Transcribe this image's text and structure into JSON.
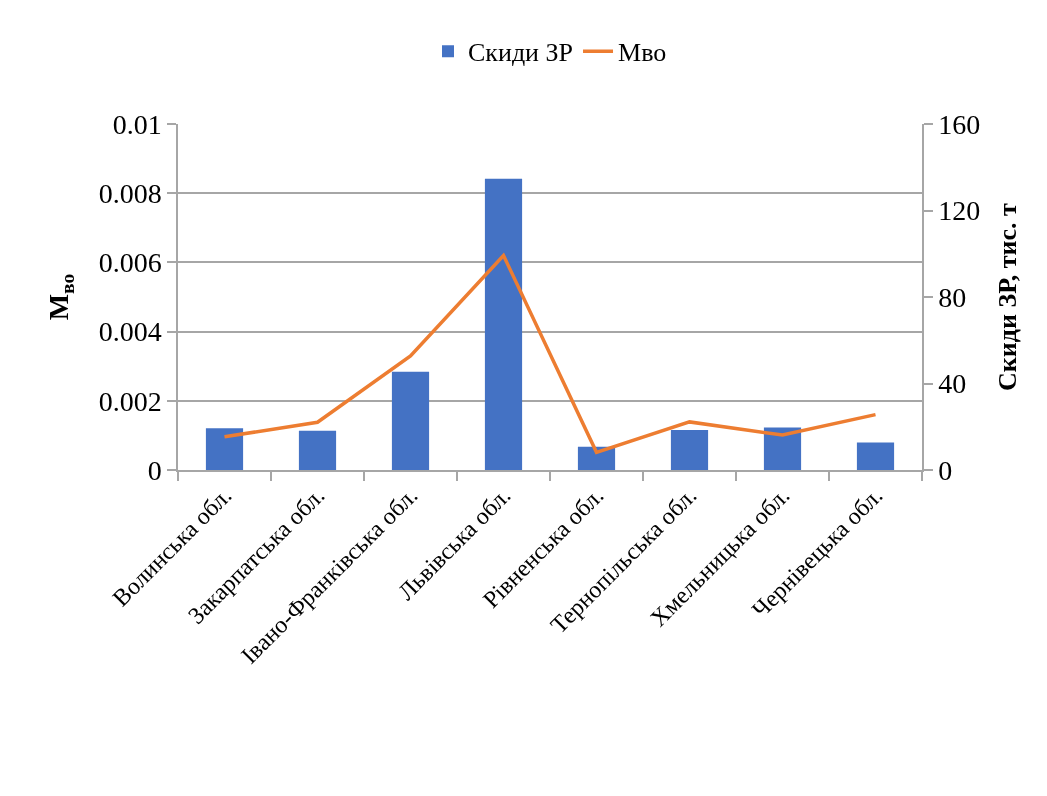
{
  "chart_data": {
    "type": "bar",
    "categories": [
      "Волинська обл.",
      "Закарпатська обл.",
      "Івано-Франківська обл.",
      "Львівська обл.",
      "Рівненська обл.",
      "Тернопільська обл.",
      "Хмельницька обл.",
      "Чернівецька обл."
    ],
    "series": [
      {
        "name": "Скиди ЗР",
        "axis": "y2",
        "color": "#4472c4",
        "values": [
          19.3,
          18.2,
          45.4,
          134.7,
          10.8,
          18.5,
          19.7,
          12.7
        ]
      },
      {
        "name": "Мво",
        "type": "line",
        "axis": "y",
        "color": "#ed7d31",
        "values": [
          0.00096,
          0.00138,
          0.0033,
          0.0062,
          0.00051,
          0.00139,
          0.00101,
          0.0016
        ]
      }
    ],
    "ylabel": "М$_{во}$",
    "y2label": "Скиди ЗР, тис. т",
    "ylim": [
      0,
      0.01
    ],
    "yticks": [
      0,
      0.002,
      0.004,
      0.006,
      0.008,
      0.01
    ],
    "y2lim": [
      0,
      160
    ],
    "y2ticks": [
      0,
      40,
      80,
      120,
      160
    ],
    "grid": "y",
    "legend": "top",
    "marker": "none",
    "line_style": "solid"
  }
}
